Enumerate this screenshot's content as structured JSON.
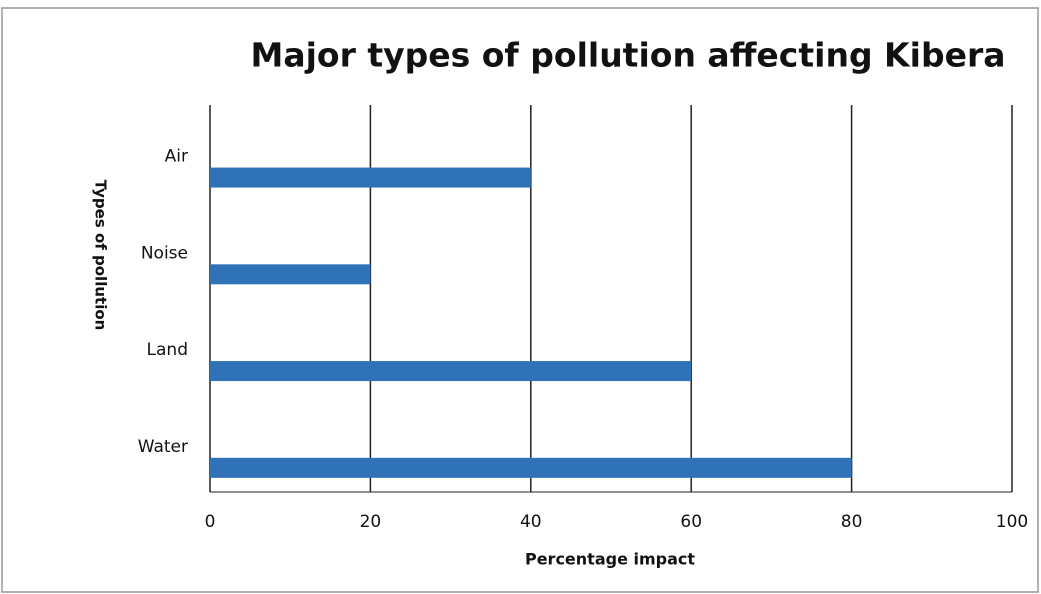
{
  "chart_data": {
    "type": "barh",
    "title": "Major types of pollution affecting Kibera",
    "x_label": "Percentage impact",
    "y_label": "Types of pollution",
    "categories": [
      "Air",
      "Noise",
      "Land",
      "Water"
    ],
    "values": [
      40,
      20,
      60,
      80
    ],
    "color": "#2f72b8",
    "xlim": [
      0,
      100
    ],
    "xticks": [
      0,
      20,
      40,
      60,
      80,
      100
    ],
    "grid": true
  }
}
